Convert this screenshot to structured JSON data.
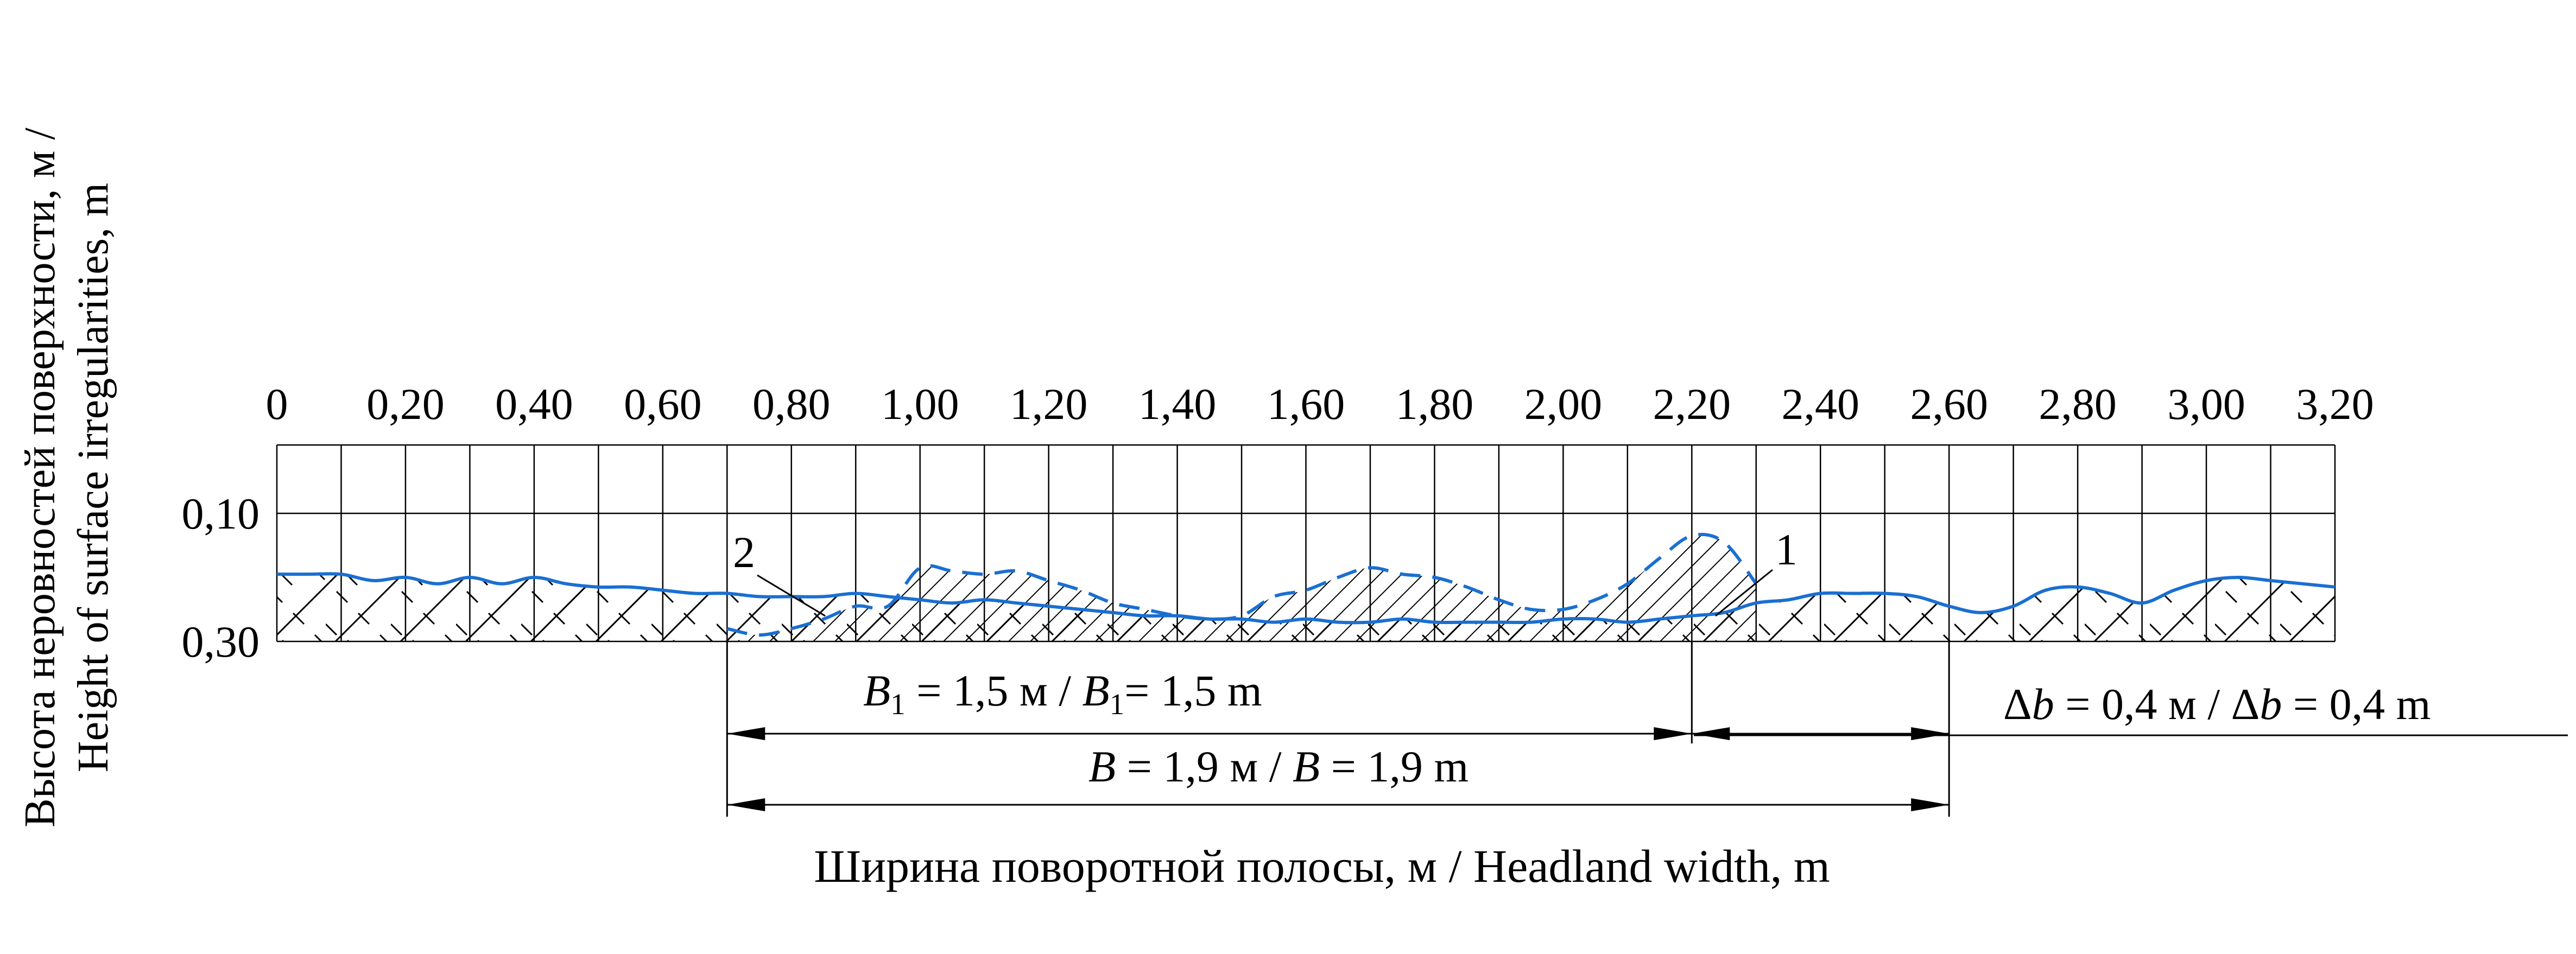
{
  "chart_data": {
    "type": "line",
    "xlabel": "Ширина поворотной полосы, м / Headland width, m",
    "ylabel_line1": "Высота неровностей поверхности, м /",
    "ylabel_line2": "Height of surface irregularities, m",
    "x_ticks": [
      "0",
      "0,20",
      "0,40",
      "0,60",
      "0,80",
      "1,00",
      "1,20",
      "1,40",
      "1,60",
      "1,80",
      "2,00",
      "2,20",
      "2,40",
      "2,60",
      "2,80",
      "3,00",
      "3,20"
    ],
    "x_tick_values": [
      0,
      0.2,
      0.4,
      0.6,
      0.8,
      1.0,
      1.2,
      1.4,
      1.6,
      1.8,
      2.0,
      2.2,
      2.4,
      2.6,
      2.8,
      3.0,
      3.2
    ],
    "y_ticks": [
      "0,10",
      "0,30"
    ],
    "y_tick_values": [
      0.1,
      0.3
    ],
    "xlim": [
      0,
      3.2
    ],
    "ylim": [
      0,
      0.3
    ],
    "y_inverted": true,
    "grid": true,
    "colors": {
      "series": "#1a6fd1",
      "hatch": "#000000"
    },
    "series": [
      {
        "id": "1",
        "style": "solid",
        "x": [
          0,
          0.05,
          0.1,
          0.15,
          0.2,
          0.25,
          0.3,
          0.35,
          0.4,
          0.45,
          0.5,
          0.55,
          0.6,
          0.65,
          0.7,
          0.75,
          0.8,
          0.85,
          0.9,
          0.95,
          1.0,
          1.05,
          1.1,
          1.15,
          1.2,
          1.25,
          1.3,
          1.35,
          1.4,
          1.45,
          1.5,
          1.55,
          1.6,
          1.65,
          1.7,
          1.75,
          1.8,
          1.85,
          1.9,
          1.95,
          2.0,
          2.05,
          2.1,
          2.15,
          2.2,
          2.25,
          2.3,
          2.35,
          2.4,
          2.45,
          2.5,
          2.55,
          2.6,
          2.65,
          2.7,
          2.75,
          2.8,
          2.85,
          2.9,
          2.95,
          3.0,
          3.05,
          3.1,
          3.15,
          3.2
        ],
        "y": [
          0.195,
          0.195,
          0.195,
          0.205,
          0.2,
          0.21,
          0.2,
          0.21,
          0.2,
          0.21,
          0.215,
          0.215,
          0.22,
          0.225,
          0.225,
          0.23,
          0.23,
          0.23,
          0.225,
          0.23,
          0.235,
          0.24,
          0.235,
          0.24,
          0.245,
          0.25,
          0.255,
          0.26,
          0.26,
          0.265,
          0.265,
          0.27,
          0.265,
          0.27,
          0.27,
          0.265,
          0.27,
          0.27,
          0.27,
          0.27,
          0.265,
          0.265,
          0.27,
          0.265,
          0.26,
          0.255,
          0.24,
          0.235,
          0.225,
          0.225,
          0.225,
          0.23,
          0.245,
          0.255,
          0.245,
          0.22,
          0.215,
          0.225,
          0.24,
          0.22,
          0.205,
          0.2,
          0.205,
          0.21,
          0.215
        ]
      },
      {
        "id": "2",
        "style": "dashed",
        "x": [
          0.7,
          0.75,
          0.8,
          0.85,
          0.9,
          0.95,
          1.0,
          1.05,
          1.1,
          1.15,
          1.2,
          1.25,
          1.3,
          1.35,
          1.4,
          1.45,
          1.5,
          1.55,
          1.6,
          1.65,
          1.7,
          1.75,
          1.8,
          1.85,
          1.9,
          1.95,
          2.0,
          2.05,
          2.1,
          2.15,
          2.2,
          2.25,
          2.3
        ],
        "y": [
          0.28,
          0.29,
          0.28,
          0.265,
          0.245,
          0.245,
          0.185,
          0.19,
          0.195,
          0.19,
          0.205,
          0.22,
          0.24,
          0.25,
          0.26,
          0.265,
          0.26,
          0.23,
          0.22,
          0.2,
          0.185,
          0.195,
          0.2,
          0.215,
          0.235,
          0.25,
          0.25,
          0.235,
          0.21,
          0.17,
          0.135,
          0.145,
          0.21
        ]
      }
    ],
    "annotations": {
      "b1_label": "B",
      "b1_sub": "1",
      "b1_mid": " = 1,5 м / ",
      "b1_label2": "B",
      "b1_sub2": "1",
      "b1_end": "= 1,5 m",
      "b1_from": 0.7,
      "b1_to": 2.2,
      "b_label": "B",
      "b_mid": " = 1,9 м / ",
      "b_label2": "B",
      "b_end": " = 1,9 m",
      "b_from": 0.7,
      "b_to": 2.6,
      "db_delta": "Δ",
      "db_var": "b",
      "db_mid": " = 0,4 м / ",
      "db_delta2": "Δ",
      "db_var2": "b",
      "db_end": " = 0,4 m",
      "db_from": 2.2,
      "db_to": 2.6
    }
  }
}
